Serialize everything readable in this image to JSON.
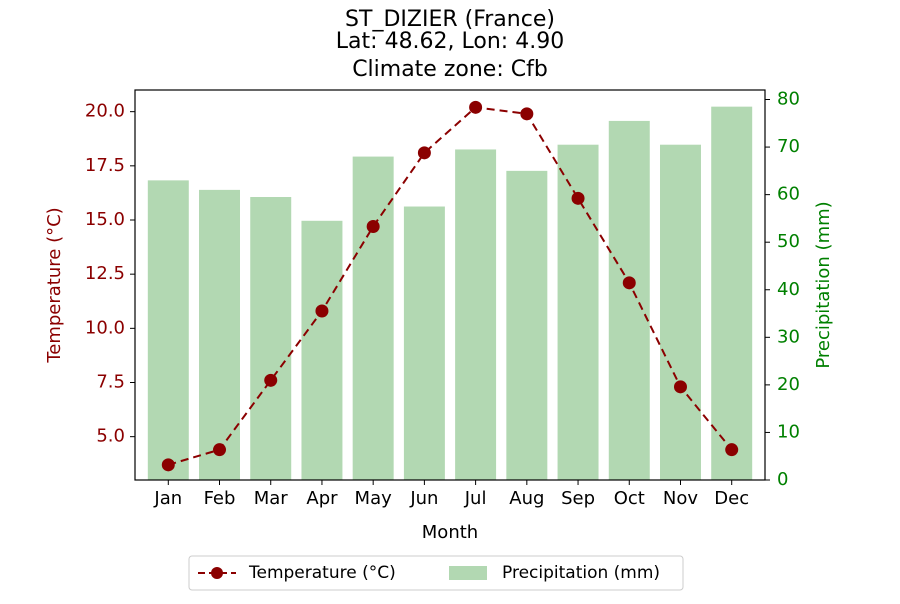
{
  "chart_data": {
    "type": "bar+line",
    "title_lines": [
      "ST_DIZIER (France)",
      "Lat: 48.62, Lon: 4.90",
      "Climate zone: Cfb"
    ],
    "xlabel": "Month",
    "ylabel_left": "Temperature (°C)",
    "ylabel_right": "Precipitation (mm)",
    "categories": [
      "Jan",
      "Feb",
      "Mar",
      "Apr",
      "May",
      "Jun",
      "Jul",
      "Aug",
      "Sep",
      "Oct",
      "Nov",
      "Dec"
    ],
    "series": [
      {
        "name": "Temperature (°C)",
        "axis": "left",
        "kind": "line",
        "color": "#8b0000",
        "values": [
          3.7,
          4.4,
          7.6,
          10.8,
          14.7,
          18.1,
          20.2,
          19.9,
          16.0,
          12.1,
          7.3,
          4.4
        ]
      },
      {
        "name": "Precipitation (mm)",
        "axis": "right",
        "kind": "bar",
        "color": "#b2d8b2",
        "values": [
          63,
          61,
          59.5,
          54.5,
          68,
          57.5,
          69.5,
          65,
          70.5,
          75.5,
          70.5,
          78.5
        ]
      }
    ],
    "ylim_left": [
      3.0,
      21.0
    ],
    "ylim_right": [
      0,
      82
    ],
    "yticks_left": [
      "5.0",
      "7.5",
      "10.0",
      "12.5",
      "15.0",
      "17.5",
      "20.0"
    ],
    "yticks_right": [
      "0",
      "10",
      "20",
      "30",
      "40",
      "50",
      "60",
      "70",
      "80"
    ],
    "left_axis_color": "#8b0000",
    "right_axis_color": "#008000",
    "grid": false,
    "legend_placement": "bottom-center"
  }
}
